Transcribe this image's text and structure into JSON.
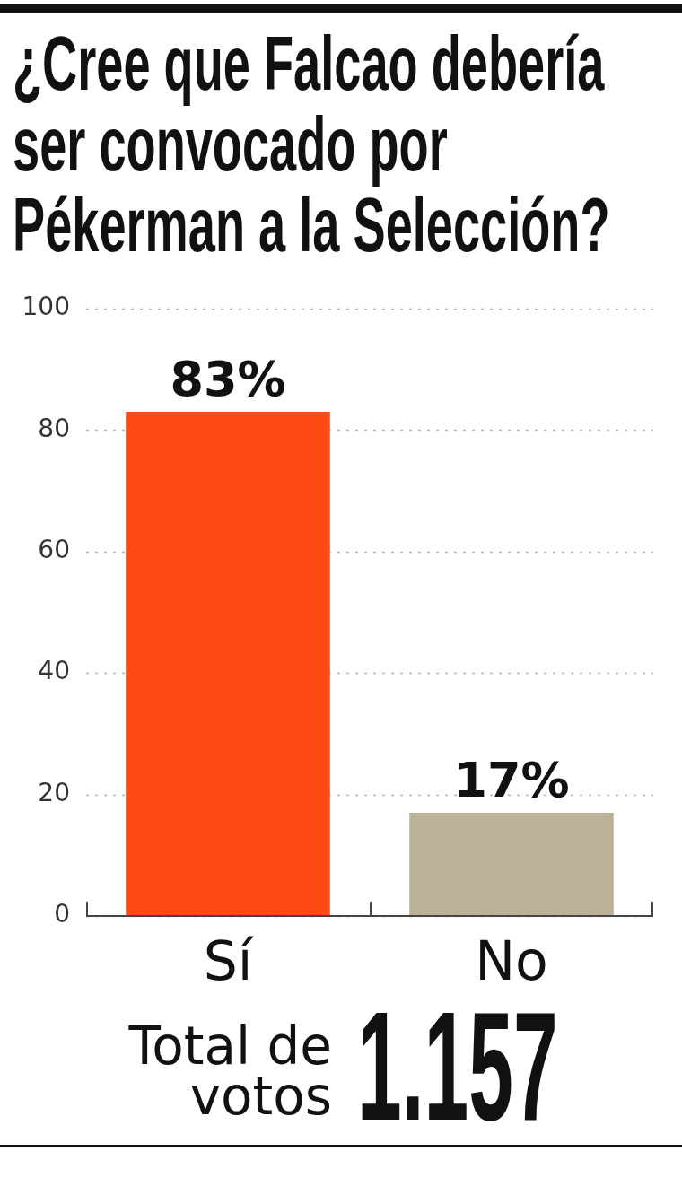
{
  "chart_data": {
    "type": "bar",
    "title": "¿Cree que Falcao debería ser convocado por Pékerman a la Selección?",
    "categories": [
      "Sí",
      "No"
    ],
    "values": [
      83,
      17
    ],
    "colors": [
      "#fc4a12",
      "#bcb196"
    ],
    "value_labels": [
      "83%",
      "17%"
    ],
    "ylim": [
      0,
      100
    ],
    "yticks": [
      0,
      20,
      40,
      60,
      80,
      100
    ],
    "grid": "y",
    "annotations": [
      "Total de votos",
      "1.157"
    ]
  }
}
